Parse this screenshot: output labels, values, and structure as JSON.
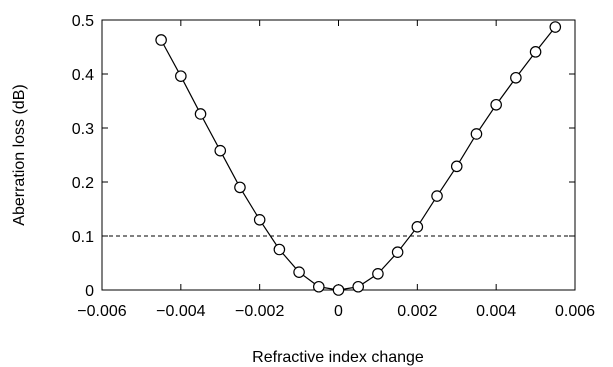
{
  "chart_data": {
    "type": "line",
    "xlabel": "Refractive index change",
    "ylabel": "Aberration loss (dB)",
    "xlim": [
      -0.006,
      0.006
    ],
    "ylim": [
      0,
      0.5
    ],
    "x_ticks": [
      -0.006,
      -0.004,
      -0.002,
      0,
      0.002,
      0.004,
      0.006
    ],
    "x_tick_labels": [
      "−0.006",
      "−0.004",
      "−0.002",
      "0",
      "0.002",
      "0.004",
      "0.006"
    ],
    "y_ticks": [
      0,
      0.1,
      0.2,
      0.3,
      0.4,
      0.5
    ],
    "y_tick_labels": [
      "0",
      "0.1",
      "0.2",
      "0.3",
      "0.4",
      "0.5"
    ],
    "grid": false,
    "reference_line": {
      "y": 0.1,
      "style": "dashed"
    },
    "series": [
      {
        "marker": "open-circle",
        "x": [
          -0.0045,
          -0.004,
          -0.0035,
          -0.003,
          -0.0025,
          -0.002,
          -0.0015,
          -0.001,
          -0.0005,
          0,
          0.0005,
          0.001,
          0.0015,
          0.002,
          0.0025,
          0.003,
          0.0035,
          0.004,
          0.0045,
          0.005,
          0.0055
        ],
        "y": [
          0.463,
          0.396,
          0.326,
          0.258,
          0.19,
          0.13,
          0.075,
          0.033,
          0.006,
          0.0,
          0.006,
          0.03,
          0.07,
          0.117,
          0.174,
          0.229,
          0.289,
          0.343,
          0.393,
          0.441,
          0.487
        ]
      }
    ]
  }
}
